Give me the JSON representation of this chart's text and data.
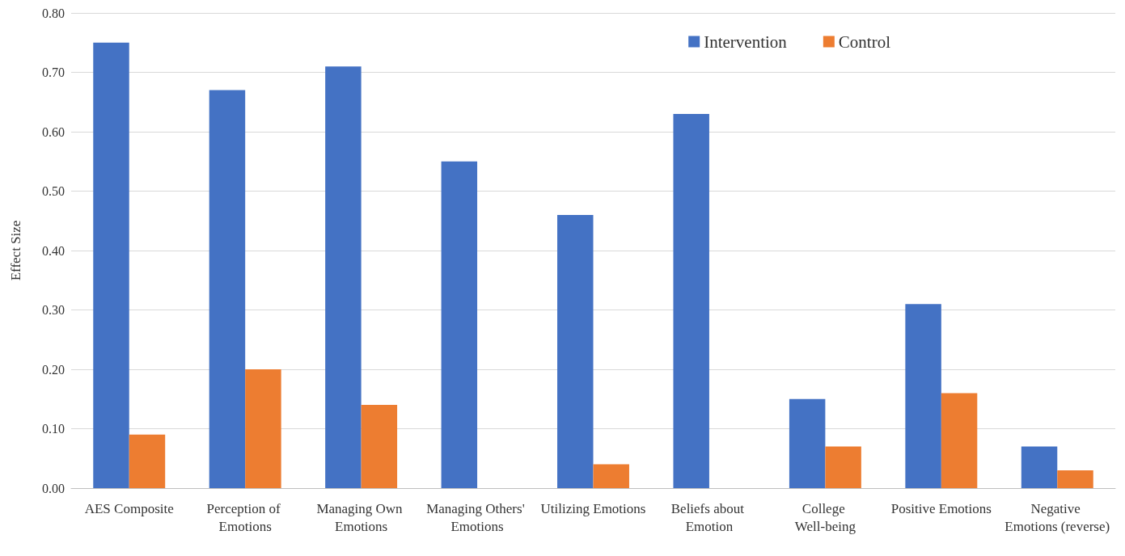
{
  "chart_data": {
    "type": "bar",
    "ylabel": "Effect Size",
    "categories": [
      "AES Composite",
      "Perception of Emotions",
      "Managing Own Emotions",
      "Managing Others' Emotions",
      "Utilizing Emotions",
      "Beliefs about Emotion",
      "College Well-being",
      "Positive Emotions",
      "Negative Emotions (reverse)"
    ],
    "series": [
      {
        "name": "Intervention",
        "color": "#4472c4",
        "values": [
          0.75,
          0.67,
          0.71,
          0.55,
          0.46,
          0.63,
          0.15,
          0.31,
          0.07
        ]
      },
      {
        "name": "Control",
        "color": "#ed7d31",
        "values": [
          0.09,
          0.2,
          0.14,
          null,
          0.04,
          null,
          0.07,
          0.16,
          0.03
        ]
      }
    ],
    "ylim": [
      0,
      0.8
    ],
    "yticks": [
      {
        "value": 0,
        "label": "0.00"
      },
      {
        "value": 0.1,
        "label": "0.10"
      },
      {
        "value": 0.2,
        "label": "0.20"
      },
      {
        "value": 0.3,
        "label": "0.30"
      },
      {
        "value": 0.4,
        "label": "0.40"
      },
      {
        "value": 0.5,
        "label": "0.50"
      },
      {
        "value": 0.6,
        "label": "0.60"
      },
      {
        "value": 0.7,
        "label": "0.70"
      },
      {
        "value": 0.8,
        "label": "0.80"
      }
    ],
    "grid": "y",
    "legend": "top right"
  }
}
